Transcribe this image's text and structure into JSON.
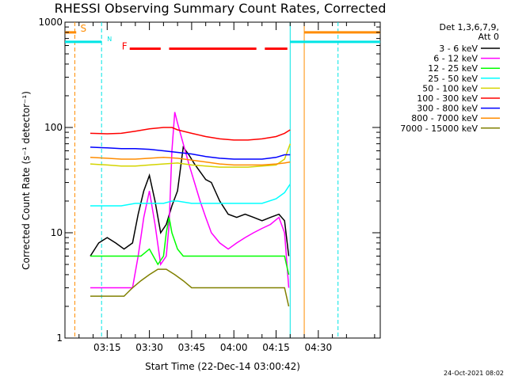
{
  "chart_data": {
    "type": "line",
    "title": "RHESSI Observing Summary Count Rates, Corrected",
    "xlabel": "Start Time (22-Dec-14 03:00:42)",
    "ylabel": "Corrected Count Rate (s⁻¹ detector⁻¹)",
    "ylog": true,
    "ylim": [
      1,
      1000
    ],
    "xlim_min": [
      0,
      112
    ],
    "x_ticks": [
      {
        "min": 15,
        "label": "03:15"
      },
      {
        "min": 30,
        "label": "03:30"
      },
      {
        "min": 45,
        "label": "03:45"
      },
      {
        "min": 60,
        "label": "04:00"
      },
      {
        "min": 75,
        "label": "04:15"
      },
      {
        "min": 90,
        "label": "04:30"
      }
    ],
    "y_ticks": [
      {
        "v": 1,
        "label": "1"
      },
      {
        "v": 10,
        "label": "10"
      },
      {
        "v": 100,
        "label": "100"
      },
      {
        "v": 1000,
        "label": "1000"
      }
    ],
    "legend_header": [
      "Det 1,3,6,7,9,",
      "Att 0"
    ],
    "legend_position": "right",
    "date_stamp": "24-Oct-2021 08:02",
    "flags": {
      "S": {
        "label": "S",
        "color": "#ff8c00",
        "level": 800,
        "segments": [
          [
            0,
            4
          ],
          [
            85,
            112
          ]
        ]
      },
      "N": {
        "label": "N",
        "color": "#00e5e5",
        "level": 650,
        "segments": [
          [
            0,
            13
          ],
          [
            80,
            112
          ]
        ]
      },
      "F": {
        "label": "F",
        "color": "#ff0000",
        "level": 560,
        "segments": [
          [
            23,
            34
          ],
          [
            37,
            68
          ],
          [
            71,
            79
          ]
        ]
      }
    },
    "vlines": [
      {
        "min": 3.5,
        "color": "#ff8c00",
        "style": "dashed"
      },
      {
        "min": 13,
        "color": "#00e5e5",
        "style": "dashed"
      },
      {
        "min": 80,
        "color": "#00e5e5",
        "style": "solid"
      },
      {
        "min": 85,
        "color": "#ff8c00",
        "style": "solid"
      },
      {
        "min": 97,
        "color": "#00e5e5",
        "style": "dashed"
      }
    ],
    "series": [
      {
        "name": "3 - 6 keV",
        "color": "#000000",
        "x": [
          9,
          12,
          15,
          18,
          21,
          24,
          26,
          28,
          30,
          32,
          34,
          36,
          38,
          40,
          42,
          44,
          46,
          48,
          50,
          52,
          55,
          58,
          61,
          64,
          67,
          70,
          73,
          76,
          78,
          79.5
        ],
        "y": [
          6,
          8,
          9,
          8,
          7,
          8,
          15,
          25,
          35,
          20,
          10,
          12,
          18,
          25,
          65,
          55,
          45,
          38,
          32,
          30,
          20,
          15,
          14,
          15,
          14,
          13,
          14,
          15,
          13,
          6
        ]
      },
      {
        "name": "6 - 12 keV",
        "color": "#ff00ff",
        "x": [
          9,
          12,
          15,
          18,
          21,
          24,
          26,
          28,
          30,
          32,
          34,
          36,
          37,
          38,
          39,
          40,
          42,
          44,
          46,
          48,
          50,
          52,
          55,
          58,
          61,
          64,
          67,
          70,
          73,
          76,
          78,
          79.5
        ],
        "y": [
          3,
          3,
          3,
          3,
          3,
          3,
          6,
          14,
          25,
          12,
          5,
          6,
          12,
          60,
          140,
          110,
          70,
          45,
          30,
          20,
          14,
          10,
          8,
          7,
          8,
          9,
          10,
          11,
          12,
          14,
          10,
          3
        ]
      },
      {
        "name": "12 - 25 keV",
        "color": "#00ff00",
        "x": [
          9,
          15,
          21,
          24,
          27,
          30,
          33,
          35,
          36,
          37,
          38,
          40,
          42,
          45,
          50,
          55,
          60,
          65,
          70,
          75,
          78,
          79.5
        ],
        "y": [
          6,
          6,
          6,
          6,
          6,
          7,
          5,
          6,
          10,
          14,
          10,
          7,
          6,
          6,
          6,
          6,
          6,
          6,
          6,
          6,
          6,
          4
        ]
      },
      {
        "name": "25 - 50 keV",
        "color": "#00ffff",
        "x": [
          9,
          15,
          20,
          25,
          30,
          35,
          38,
          40,
          45,
          50,
          55,
          60,
          65,
          70,
          75,
          78,
          80
        ],
        "y": [
          18,
          18,
          18,
          19,
          19,
          19,
          20,
          20,
          19,
          19,
          19,
          19,
          19,
          19,
          21,
          24,
          29
        ]
      },
      {
        "name": "50 - 100 keV",
        "color": "#d4d400",
        "x": [
          9,
          15,
          20,
          25,
          30,
          35,
          40,
          45,
          50,
          55,
          60,
          65,
          70,
          75,
          78,
          80
        ],
        "y": [
          45,
          44,
          43,
          43,
          44,
          45,
          46,
          44,
          43,
          42,
          42,
          42,
          43,
          44,
          50,
          70
        ]
      },
      {
        "name": "100 - 300 keV",
        "color": "#ff0000",
        "x": [
          9,
          15,
          20,
          25,
          30,
          35,
          38,
          40,
          45,
          50,
          55,
          60,
          65,
          70,
          75,
          78,
          80
        ],
        "y": [
          88,
          87,
          88,
          92,
          97,
          100,
          100,
          95,
          88,
          82,
          78,
          76,
          76,
          78,
          82,
          88,
          95
        ]
      },
      {
        "name": "300 - 800 keV",
        "color": "#0000ff",
        "x": [
          9,
          15,
          20,
          25,
          30,
          35,
          40,
          45,
          50,
          55,
          60,
          65,
          70,
          75,
          78,
          80
        ],
        "y": [
          65,
          64,
          63,
          63,
          62,
          60,
          58,
          56,
          53,
          51,
          50,
          50,
          50,
          52,
          55,
          55
        ]
      },
      {
        "name": "800 - 7000 keV",
        "color": "#ff8c00",
        "x": [
          9,
          15,
          20,
          25,
          30,
          35,
          40,
          45,
          50,
          55,
          60,
          65,
          70,
          75,
          78,
          80
        ],
        "y": [
          52,
          51,
          50,
          50,
          51,
          52,
          51,
          49,
          47,
          45,
          44,
          44,
          44,
          45,
          46,
          47
        ]
      },
      {
        "name": "7000 - 15000 keV",
        "color": "#808000",
        "x": [
          9,
          12,
          15,
          18,
          21,
          24,
          27,
          30,
          33,
          36,
          39,
          42,
          45,
          50,
          55,
          60,
          65,
          70,
          75,
          78,
          79.5
        ],
        "y": [
          2.5,
          2.5,
          2.5,
          2.5,
          2.5,
          3,
          3.5,
          4,
          4.5,
          4.5,
          4,
          3.5,
          3,
          3,
          3,
          3,
          3,
          3,
          3,
          3,
          2
        ]
      }
    ]
  }
}
